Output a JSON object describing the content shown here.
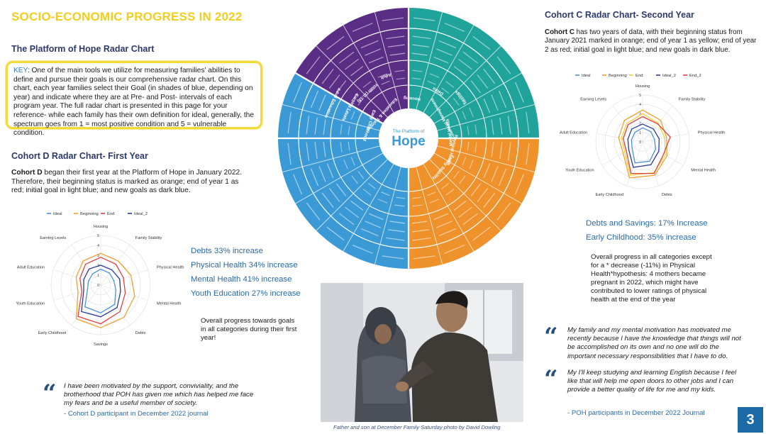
{
  "title": "SOCIO-ECONOMIC PROGRESS IN 2022",
  "platform": {
    "heading": "The Platform of Hope Radar Chart",
    "key_label": "KEY",
    "key_text": ": One of the main tools we utilize for measuring families' abilities to define and pursue their goals is our comprehensive radar chart. On this chart, each year families select their Goal (in shades of blue, depending on year) and indicate where they are at Pre- and Post- intervals of each program year. The full radar chart is presented in this page for your reference- while each family has their own definition for ideal, generally, the spectrum goes from 1 = most positive condition and 5 = vulnerable condition."
  },
  "cohort_d": {
    "heading": "Cohort D Radar Chart- First Year",
    "lead": "Cohort D",
    "text": " began their first year at the Platform of Hope in January 2022. Therefore, their beginning status is marked as orange; end of year 1 as red; initial goal in light blue; and new goals as dark blue.",
    "stats": [
      "Debts 33% increase",
      "Physical Health 34% increase",
      "Mental Health 41% increase",
      "Youth Education 27% increase"
    ],
    "overall": "Overall progress towards goals in all categories during their first year!",
    "quote": "I have been motivated by the support, conviviality, and the brotherhood that POH has given me which has helped me face my fears and be a useful member of society.",
    "attribution": "- Cohort D participant in December 2022 journal"
  },
  "cohort_c": {
    "heading": "Cohort C Radar Chart- Second Year",
    "lead": "Cohort C",
    "text": " has two years of data, with their beginning status from January 2021 marked in orange; end of year 1 as yellow; end of year 2 as red; initial goal in light blue; and new goals in dark blue.",
    "stats": [
      "Debts and Savings:  17% Increase",
      "Early Childhood: 35% increase"
    ],
    "overall": "Overall progress in all categories except for a  * decrease (-11%) in Physical Health*hypothesis: 4 mothers became pregnant in 2022, which might have contributed to lower ratings of physical health at the end of the year",
    "quote1": "My family and my mental motivation has motivated me recently because I have the knowledge that things will not be accomplished on its own and no one will do the important necessary responsibilities that I have to do.",
    "quote2": "My I'll keep studying and learning English because I feel like that will help me open doors to other jobs and I can provide a better quality of life for me and my kids.",
    "attribution": "- POH participants  in December 2022 Journal"
  },
  "quote_mark": "“",
  "photo_caption": "Father and son at December Family Saturday photo by David Dowling",
  "page_number": "3",
  "wheel": {
    "center_small": "The Platform of",
    "center_big": "Hope",
    "labels": [
      "Early Childhood",
      "Education & Training",
      "Youth (11-18)",
      "Adult",
      "Debts",
      "Savings",
      "Financial Management",
      "Mental Health",
      "Physical Health",
      "Family Stability",
      "Housing",
      "Earning Levels",
      "Adult Education"
    ]
  },
  "chart_data": [
    {
      "type": "radar",
      "name": "Cohort D",
      "axes": [
        "Housing",
        "Family Stability",
        "Physical Health",
        "Mental Health",
        "Debts",
        "Savings",
        "Early Childhood",
        "Youth Education",
        "Adult Education",
        "Earning Levels"
      ],
      "tick_labels": [
        "0",
        "1",
        "2",
        "3",
        "4",
        "5"
      ],
      "rmax": 5,
      "series": [
        {
          "name": "Ideal",
          "color": "#4a90d9",
          "values": [
            1.6,
            1.5,
            1.4,
            1.6,
            2.4,
            2.8,
            2.7,
            1.4,
            1.3,
            1.4
          ]
        },
        {
          "name": "Beginning",
          "color": "#f0a030",
          "values": [
            3.2,
            3.0,
            3.2,
            3.6,
            4.0,
            4.3,
            4.2,
            2.4,
            2.6,
            3.0
          ]
        },
        {
          "name": "End",
          "color": "#e24040",
          "values": [
            2.8,
            2.6,
            2.4,
            2.6,
            3.3,
            3.9,
            3.9,
            2.0,
            2.2,
            2.6
          ]
        },
        {
          "name": "Ideal_2",
          "color": "#2a3a9a",
          "values": [
            2.0,
            1.9,
            2.0,
            2.1,
            2.8,
            3.2,
            3.3,
            1.8,
            1.8,
            2.0
          ]
        }
      ],
      "legend": "top",
      "extra_labels": [
        "Savings"
      ]
    },
    {
      "type": "radar",
      "name": "Cohort C",
      "axes": [
        "Housing",
        "Family Stability",
        "Physical Health",
        "Mental Health",
        "Debts",
        "Early Childhood",
        "Youth Education",
        "Adult Education",
        "Earning Levels"
      ],
      "tick_labels": [
        "0",
        "1",
        "2",
        "3",
        "4",
        "5"
      ],
      "rmax": 5,
      "series": [
        {
          "name": "Ideal",
          "color": "#4a90d9",
          "values": [
            1.5,
            1.4,
            1.3,
            1.6,
            2.2,
            2.4,
            1.3,
            1.2,
            1.3
          ]
        },
        {
          "name": "Beginning",
          "color": "#f0a030",
          "values": [
            3.4,
            3.0,
            2.6,
            3.0,
            3.8,
            4.1,
            2.4,
            2.6,
            3.0
          ]
        },
        {
          "name": "End",
          "color": "#f3d040",
          "values": [
            3.0,
            2.6,
            2.4,
            2.8,
            3.5,
            3.8,
            2.2,
            2.3,
            2.6
          ]
        },
        {
          "name": "Ideal_2",
          "color": "#2a3a9a",
          "values": [
            1.9,
            1.8,
            1.8,
            2.0,
            2.6,
            2.9,
            1.7,
            1.6,
            1.8
          ]
        },
        {
          "name": "End_2",
          "color": "#e24040",
          "values": [
            2.7,
            2.5,
            3.0,
            2.6,
            3.6,
            3.6,
            2.0,
            2.1,
            2.4
          ]
        }
      ],
      "legend": "top"
    }
  ]
}
